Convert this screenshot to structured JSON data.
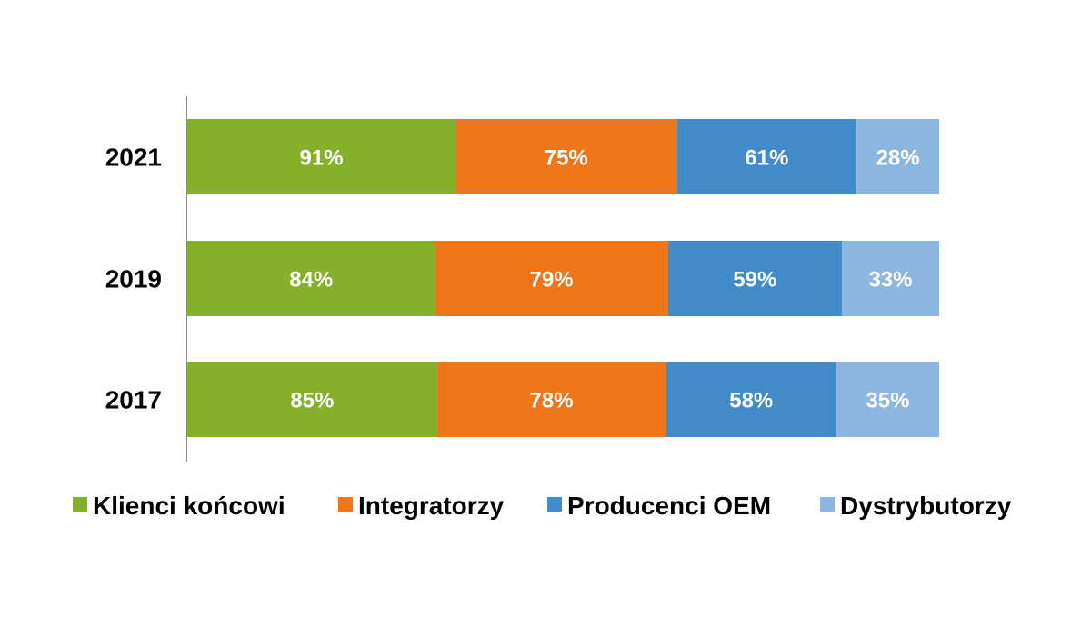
{
  "chart_data": {
    "type": "bar",
    "orientation": "horizontal",
    "stacked": true,
    "categories": [
      "2021",
      "2019",
      "2017"
    ],
    "series": [
      {
        "name": "Klienci końcowi",
        "values": [
          91,
          84,
          85
        ],
        "labels": [
          "91%",
          "84%",
          "85%"
        ],
        "color": "#84b12a"
      },
      {
        "name": "Integratorzy",
        "values": [
          75,
          79,
          78
        ],
        "labels": [
          "75%",
          "79%",
          "78%"
        ],
        "color": "#ef7519"
      },
      {
        "name": "Producenci OEM",
        "values": [
          61,
          59,
          58
        ],
        "labels": [
          "61%",
          "59%",
          "58%"
        ],
        "color": "#418bc9"
      },
      {
        "name": "Dystrybutorzy",
        "values": [
          28,
          33,
          35
        ],
        "labels": [
          "28%",
          "33%",
          "35%"
        ],
        "color": "#8ab6df"
      }
    ],
    "title": "",
    "xlabel": "",
    "ylabel": "",
    "grid": false,
    "legend": "bottom"
  }
}
